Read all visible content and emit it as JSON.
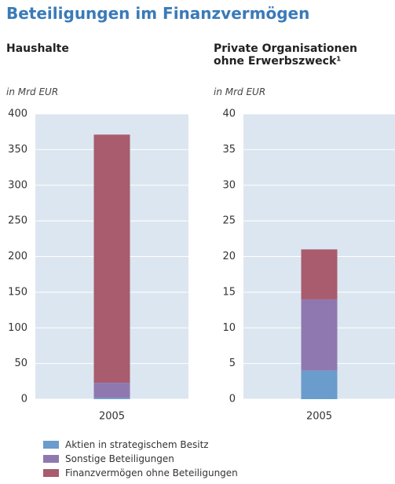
{
  "title": "Beteiligungen im Finanzvermögen",
  "chart_data": [
    {
      "type": "bar",
      "stacked": true,
      "title": "Haushalte",
      "y_label": "in Mrd EUR",
      "categories": [
        "2005"
      ],
      "series": [
        {
          "name": "Aktien in strategischem Besitz",
          "color": "#6a9ccc",
          "values": [
            2
          ]
        },
        {
          "name": "Sonstige Beteiligungen",
          "color": "#8f78b0",
          "values": [
            21
          ]
        },
        {
          "name": "Finanzvermögen ohne Beteiligungen",
          "color": "#a85c6e",
          "values": [
            348
          ]
        }
      ],
      "ylim": [
        0,
        400
      ],
      "yticks": [
        0,
        50,
        100,
        150,
        200,
        250,
        300,
        350,
        400
      ]
    },
    {
      "type": "bar",
      "stacked": true,
      "title": "Private Organisationen ohne Erwerbszweck¹",
      "y_label": "in Mrd EUR",
      "categories": [
        "2005"
      ],
      "series": [
        {
          "color": "#6a9ccc",
          "values": [
            4
          ]
        },
        {
          "color": "#8f78b0",
          "values": [
            10
          ]
        },
        {
          "color": "#a85c6e",
          "values": [
            7
          ]
        }
      ],
      "ylim": [
        0,
        40
      ],
      "yticks": [
        0,
        5,
        10,
        15,
        20,
        25,
        30,
        35,
        40
      ]
    }
  ]
}
